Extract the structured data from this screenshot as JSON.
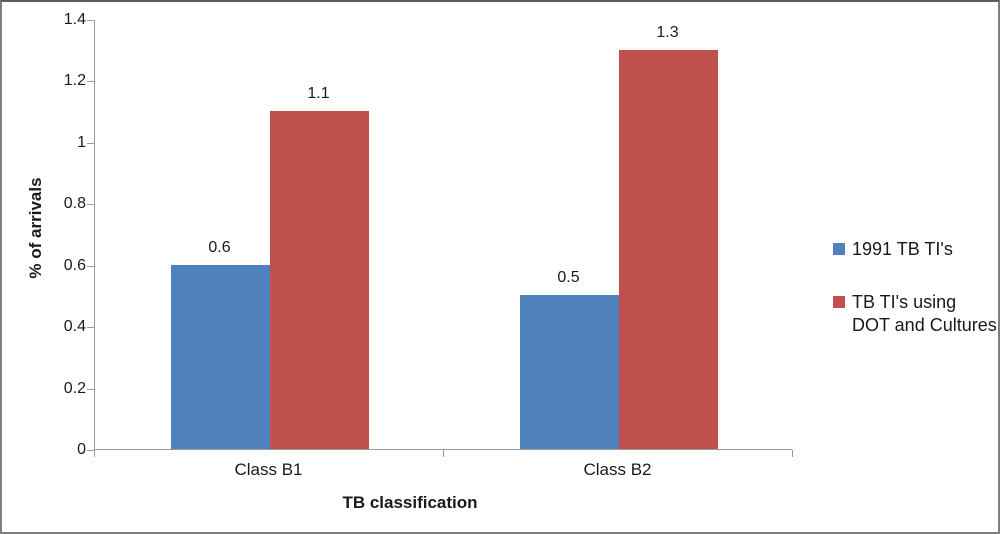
{
  "chart_data": {
    "type": "bar",
    "title": "",
    "xlabel": "TB classification",
    "ylabel": "% of arrivals",
    "categories": [
      "Class B1",
      "Class B2"
    ],
    "series": [
      {
        "name": "1991 TB TI's",
        "color": "#4F81BD",
        "values": [
          0.6,
          0.5
        ]
      },
      {
        "name": "TB TI's using DOT and Cultures",
        "color": "#C0504D",
        "values": [
          1.1,
          1.3
        ]
      }
    ],
    "ylim": [
      0,
      1.4
    ],
    "ytick_step": 0.2,
    "yticks": [
      "0",
      "0.2",
      "0.4",
      "0.6",
      "0.8",
      "1",
      "1.2",
      "1.4"
    ],
    "data_labels": [
      [
        "0.6",
        "0.5"
      ],
      [
        "1.1",
        "1.3"
      ]
    ],
    "grid": false,
    "legend_position": "right"
  },
  "colors": {
    "axis": "#9b9b9b",
    "text": "#1a1a1a",
    "frame_border": "#7f7f7f",
    "background": "#ffffff"
  }
}
